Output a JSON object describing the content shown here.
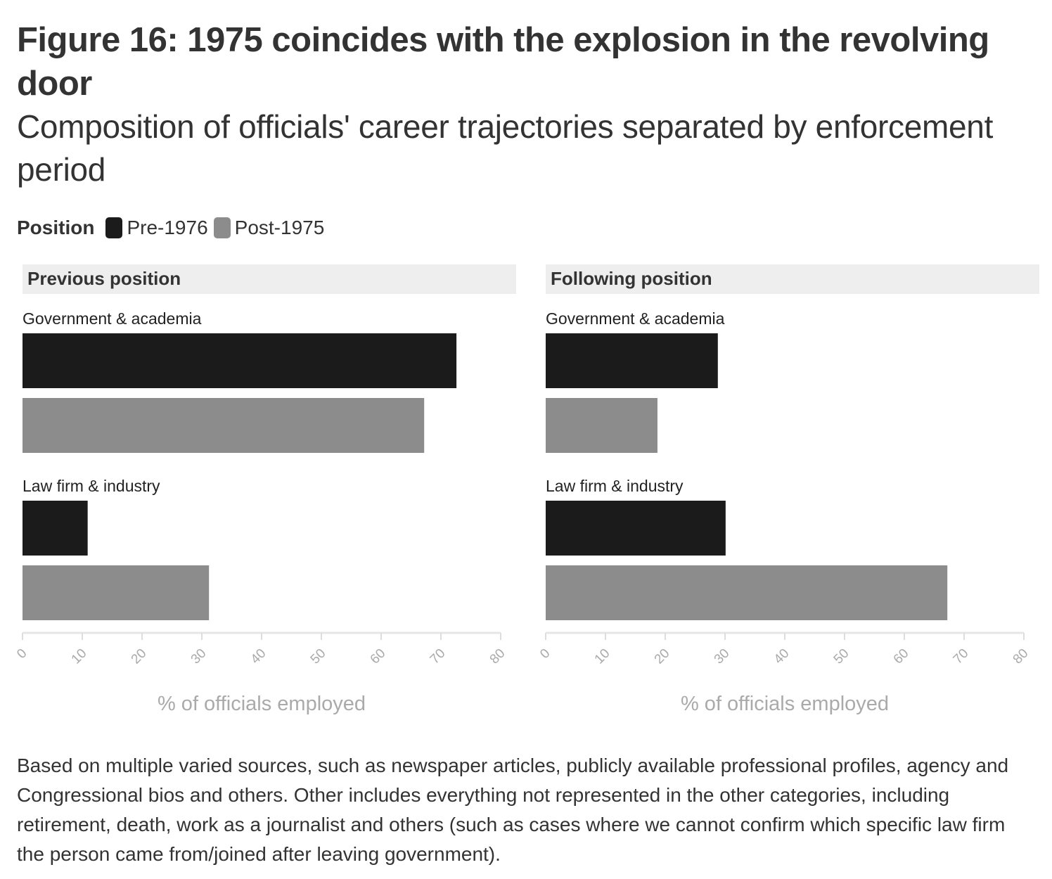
{
  "chart_data": {
    "type": "bar",
    "title": "Figure 16: 1975 coincides with the explosion in the revolving door",
    "subtitle": "Composition of officials' career trajectories separated by enforcement period",
    "legend": {
      "title": "Position",
      "placement": "top-left",
      "items": [
        {
          "label": "Pre-1976",
          "color": "#1b1b1b"
        },
        {
          "label": "Post-1975",
          "color": "#8c8c8c"
        }
      ]
    },
    "orientation": "horizontal",
    "xlabel": "% of officials employed",
    "xlim": [
      0,
      80
    ],
    "xticks": [
      "0",
      "10",
      "20",
      "30",
      "40",
      "50",
      "60",
      "70",
      "80"
    ],
    "grid": false,
    "panels": [
      {
        "title": "Previous position",
        "groups": [
          {
            "label": "Government & academia",
            "values": [
              72.6,
              67.2
            ]
          },
          {
            "label": "Law firm & industry",
            "values": [
              10.9,
              31.2
            ]
          }
        ]
      },
      {
        "title": "Following position",
        "groups": [
          {
            "label": "Government & academia",
            "values": [
              28.8,
              18.7
            ]
          },
          {
            "label": "Law firm & industry",
            "values": [
              30.1,
              67.2
            ]
          }
        ]
      }
    ]
  },
  "footnote": "Based on multiple varied sources, such as newspaper articles, publicly available professional profiles, agency and Congressional bios and others. Other includes everything not represented in the other categories, including retirement, death, work as a journalist and others (such as cases where we cannot confirm which specific law firm the person came from/joined after leaving government)."
}
